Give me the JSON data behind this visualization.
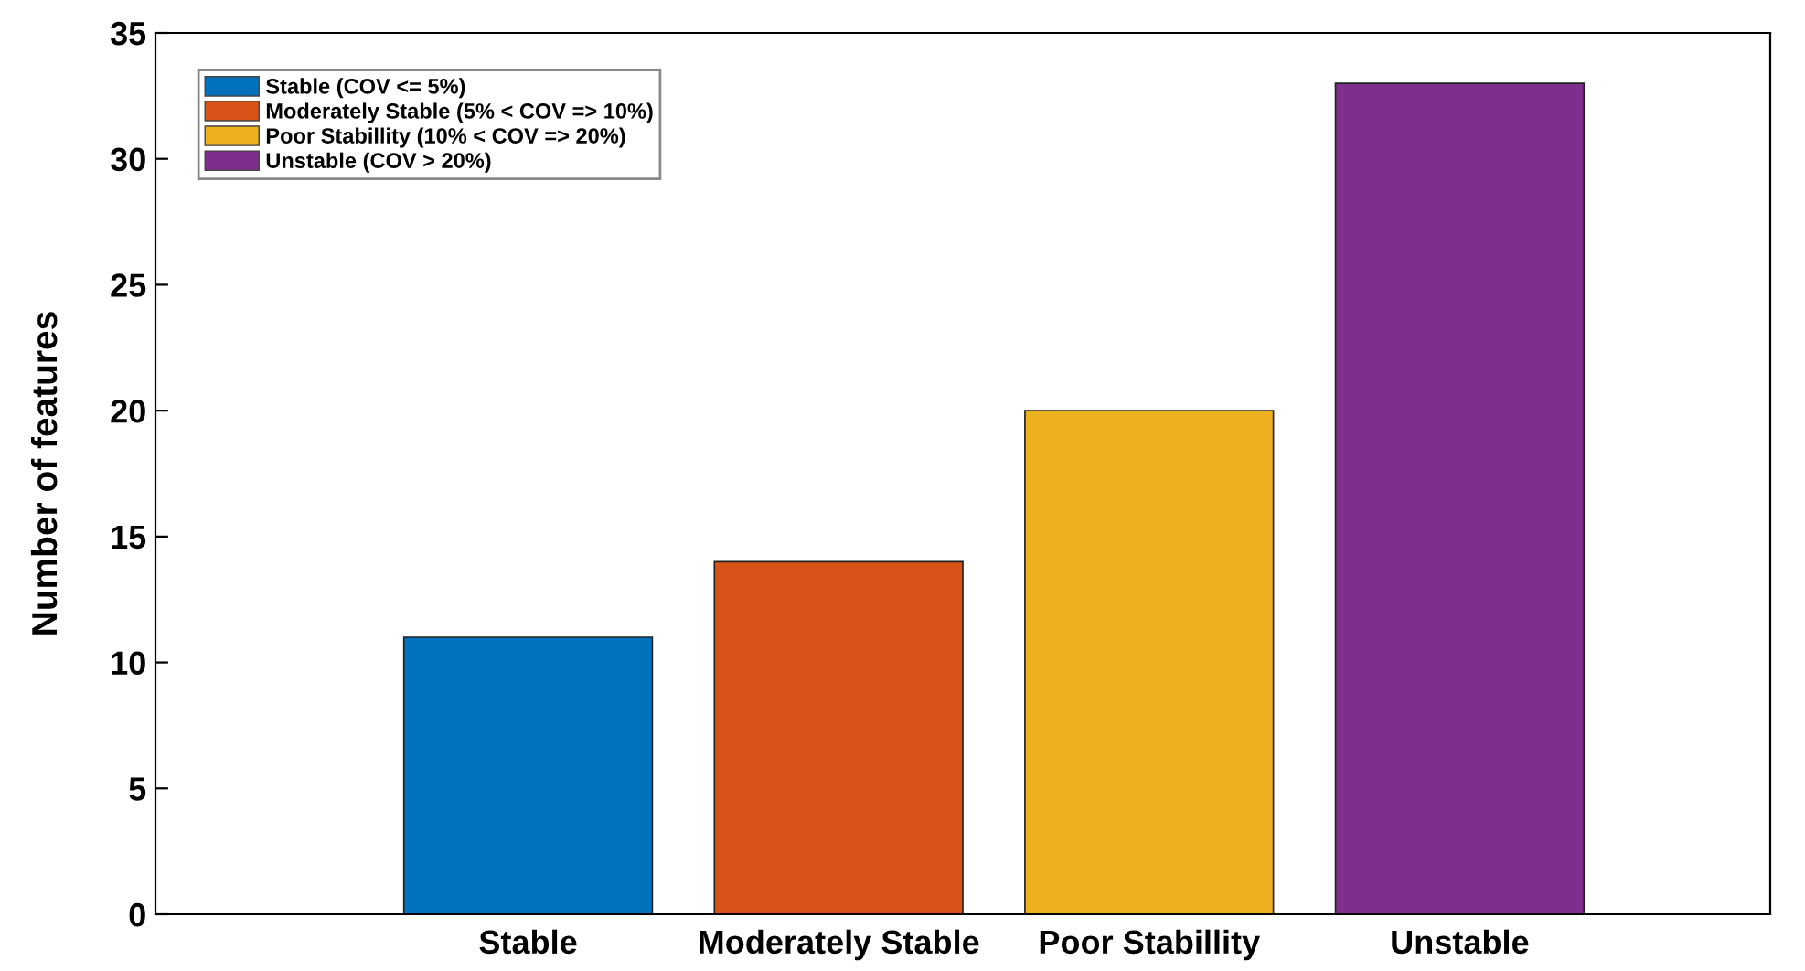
{
  "chart_data": {
    "type": "bar",
    "ylabel": "Number of features",
    "categories": [
      "Stable",
      "Moderately Stable",
      "Poor Stabillity",
      "Unstable"
    ],
    "series": [
      {
        "name": "Stable (COV <= 5%)",
        "color": "#0072bd",
        "values": [
          11,
          null,
          null,
          null
        ]
      },
      {
        "name": "Moderately Stable (5% < COV => 10%)",
        "color": "#d95319",
        "values": [
          null,
          14,
          null,
          null
        ]
      },
      {
        "name": "Poor Stabillity (10% < COV => 20%)",
        "color": "#edb120",
        "values": [
          null,
          null,
          20,
          null
        ]
      },
      {
        "name": "Unstable (COV > 20%)",
        "color": "#7e2f8e",
        "values": [
          null,
          null,
          null,
          33
        ]
      }
    ],
    "ylim": [
      0,
      35
    ],
    "yticks": [
      0,
      5,
      10,
      15,
      20,
      25,
      30,
      35
    ],
    "grid": false,
    "legend": "top left"
  }
}
